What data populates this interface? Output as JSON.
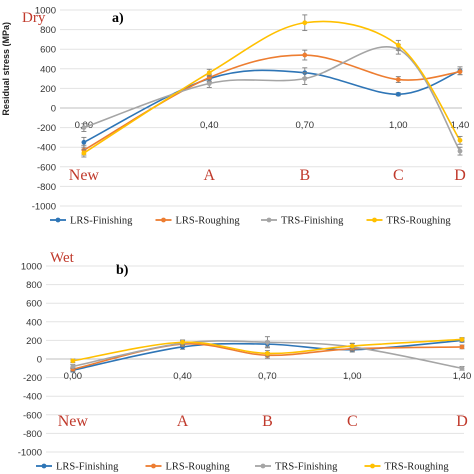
{
  "chart_data": [
    {
      "type": "line",
      "condition": "Dry",
      "panel": "a)",
      "ylabel": "Residual stress (MPa)",
      "ylim": [
        -1000,
        1000
      ],
      "yticks": [
        1000,
        800,
        600,
        400,
        200,
        0,
        -200,
        -400,
        -600,
        -800,
        -1000
      ],
      "x": [
        0.0,
        0.4,
        0.7,
        1.0,
        1.4
      ],
      "xtick_labels": [
        "0,00",
        "0,40",
        "0,70",
        "1,00",
        "1,40"
      ],
      "categories": [
        "New",
        "A",
        "B",
        "C",
        "D"
      ],
      "grid": true,
      "legend": "bottom",
      "series": [
        {
          "name": "LRS-Finishing",
          "color": "#2e75b6",
          "values": [
            -350,
            300,
            360,
            140,
            380
          ],
          "errors": [
            50,
            35,
            50,
            15,
            40
          ]
        },
        {
          "name": "LRS-Roughing",
          "color": "#ed7d31",
          "values": [
            -430,
            310,
            540,
            290,
            370
          ],
          "errors": [
            50,
            35,
            50,
            30,
            30
          ]
        },
        {
          "name": "TRS-Finishing",
          "color": "#a5a5a5",
          "values": [
            -200,
            250,
            300,
            600,
            -440
          ],
          "errors": [
            40,
            40,
            60,
            50,
            40
          ]
        },
        {
          "name": "TRS-Roughing",
          "color": "#ffc000",
          "values": [
            -460,
            360,
            870,
            640,
            -330
          ],
          "errors": [
            40,
            35,
            80,
            50,
            40
          ]
        }
      ]
    },
    {
      "type": "line",
      "condition": "Wet",
      "panel": "b)",
      "ylabel": "",
      "ylim": [
        -1000,
        1000
      ],
      "yticks": [
        1000,
        800,
        600,
        400,
        200,
        0,
        -200,
        -400,
        -600,
        -800,
        -1000
      ],
      "x": [
        0.0,
        0.4,
        0.7,
        1.0,
        1.4
      ],
      "xtick_labels": [
        "0,00",
        "0,40",
        "0,70",
        "1,00",
        "1,40"
      ],
      "categories": [
        "New",
        "A",
        "B",
        "C",
        "D"
      ],
      "grid": true,
      "legend": "bottom",
      "series": [
        {
          "name": "LRS-Finishing",
          "color": "#2e75b6",
          "values": [
            -120,
            130,
            160,
            100,
            200
          ],
          "errors": [
            20,
            25,
            30,
            25,
            20
          ]
        },
        {
          "name": "LRS-Roughing",
          "color": "#ed7d31",
          "values": [
            -110,
            160,
            40,
            110,
            130
          ],
          "errors": [
            20,
            25,
            30,
            25,
            20
          ]
        },
        {
          "name": "TRS-Finishing",
          "color": "#a5a5a5",
          "values": [
            -80,
            170,
            180,
            130,
            -100
          ],
          "errors": [
            20,
            25,
            60,
            40,
            20
          ]
        },
        {
          "name": "TRS-Roughing",
          "color": "#ffc000",
          "values": [
            -20,
            180,
            60,
            140,
            210
          ],
          "errors": [
            20,
            25,
            30,
            25,
            20
          ]
        }
      ]
    }
  ]
}
